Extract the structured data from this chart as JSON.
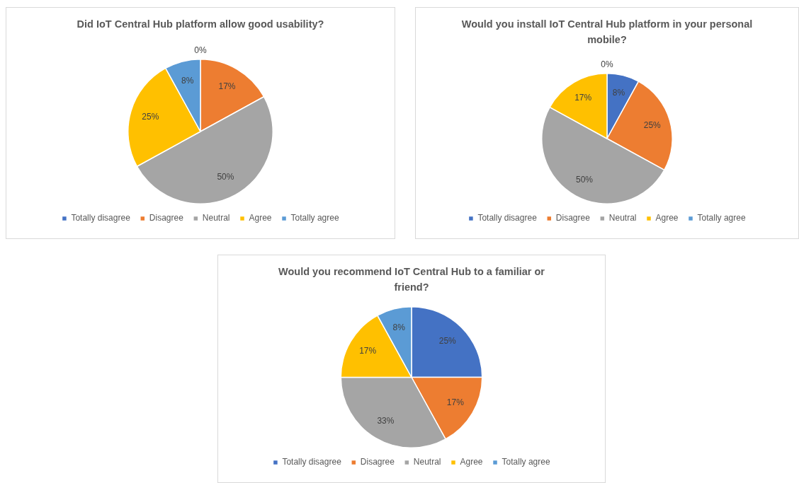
{
  "chart_data": [
    {
      "type": "pie",
      "title": "Did IoT Central Hub platform allow good usability?",
      "categories": [
        "Totally disagree",
        "Disagree",
        "Neutral",
        "Agree",
        "Totally agree"
      ],
      "values": [
        0,
        17,
        50,
        25,
        8
      ],
      "colors": [
        "#4472c4",
        "#ed7d31",
        "#a5a5a5",
        "#ffc000",
        "#5b9bd5"
      ],
      "value_labels": [
        "0%",
        "17%",
        "50%",
        "25%",
        "8%"
      ],
      "legend": "bottom"
    },
    {
      "type": "pie",
      "title": "Would you install IoT Central Hub platform in your personal mobile?",
      "categories": [
        "Totally disagree",
        "Disagree",
        "Neutral",
        "Agree",
        "Totally agree"
      ],
      "values": [
        8,
        25,
        50,
        17,
        0
      ],
      "colors": [
        "#4472c4",
        "#ed7d31",
        "#a5a5a5",
        "#ffc000",
        "#5b9bd5"
      ],
      "value_labels": [
        "8%",
        "25%",
        "50%",
        "17%",
        "0%"
      ],
      "legend": "bottom"
    },
    {
      "type": "pie",
      "title": "Would you recommend IoT Central Hub to a familiar or friend?",
      "categories": [
        "Totally disagree",
        "Disagree",
        "Neutral",
        "Agree",
        "Totally agree"
      ],
      "values": [
        25,
        17,
        33,
        17,
        8
      ],
      "colors": [
        "#4472c4",
        "#ed7d31",
        "#a5a5a5",
        "#ffc000",
        "#5b9bd5"
      ],
      "value_labels": [
        "25%",
        "17%",
        "33%",
        "17%",
        "8%"
      ],
      "legend": "bottom"
    }
  ]
}
